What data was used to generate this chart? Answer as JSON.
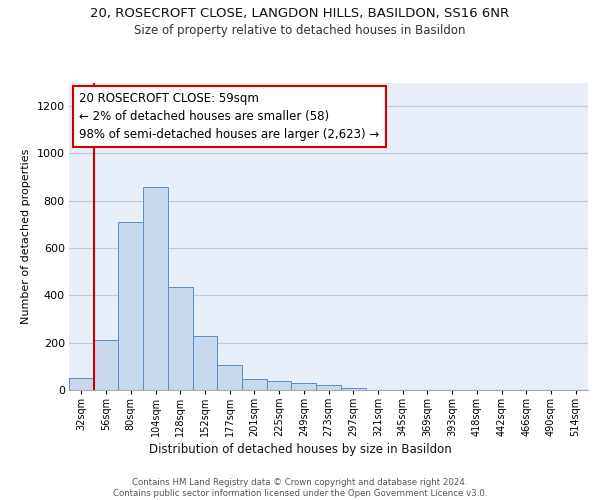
{
  "title1": "20, ROSECROFT CLOSE, LANGDON HILLS, BASILDON, SS16 6NR",
  "title2": "Size of property relative to detached houses in Basildon",
  "xlabel": "Distribution of detached houses by size in Basildon",
  "ylabel": "Number of detached properties",
  "bin_labels": [
    "32sqm",
    "56sqm",
    "80sqm",
    "104sqm",
    "128sqm",
    "152sqm",
    "177sqm",
    "201sqm",
    "225sqm",
    "249sqm",
    "273sqm",
    "297sqm",
    "321sqm",
    "345sqm",
    "369sqm",
    "393sqm",
    "418sqm",
    "442sqm",
    "466sqm",
    "490sqm",
    "514sqm"
  ],
  "bar_values": [
    50,
    210,
    710,
    860,
    435,
    230,
    105,
    47,
    38,
    28,
    20,
    10,
    0,
    0,
    0,
    0,
    0,
    0,
    0,
    0,
    0
  ],
  "bar_color": "#c9d9ed",
  "bar_edge_color": "#5b8ec4",
  "annotation_text": "20 ROSECROFT CLOSE: 59sqm\n← 2% of detached houses are smaller (58)\n98% of semi-detached houses are larger (2,623) →",
  "annotation_box_color": "#ffffff",
  "annotation_box_edge": "#cc0000",
  "vline_color": "#cc0000",
  "ylim": [
    0,
    1300
  ],
  "yticks": [
    0,
    200,
    400,
    600,
    800,
    1000,
    1200
  ],
  "footer": "Contains HM Land Registry data © Crown copyright and database right 2024.\nContains public sector information licensed under the Open Government Licence v3.0.",
  "bg_color": "#ffffff",
  "axes_bg": "#e8eef8",
  "grid_color": "#c0c8d8",
  "vline_x_bin": 1
}
